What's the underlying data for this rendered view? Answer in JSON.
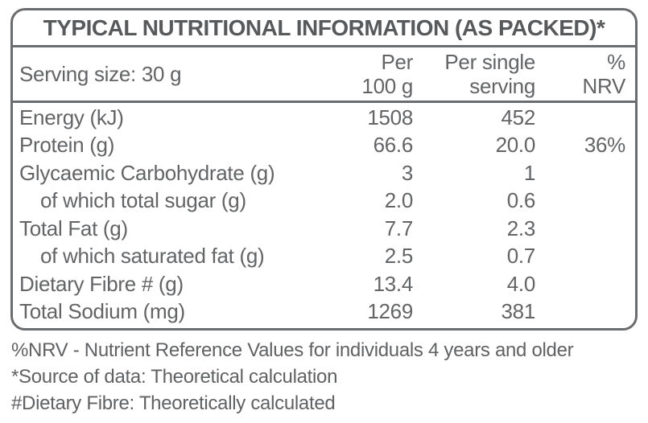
{
  "title": "TYPICAL NUTRITIONAL INFORMATION (AS PACKED)*",
  "header": {
    "serving_size": "Serving size: 30 g",
    "columns": [
      {
        "line1": "Per",
        "line2": "100 g"
      },
      {
        "line1": "Per single",
        "line2": "serving"
      },
      {
        "line1": "%",
        "line2": "NRV"
      }
    ]
  },
  "rows": [
    {
      "label": "Energy (kJ)",
      "per100": "1508",
      "serving": "452",
      "nrv": "",
      "indent": false
    },
    {
      "label": "Protein (g)",
      "per100": "66.6",
      "serving": "20.0",
      "nrv": "36%",
      "indent": false
    },
    {
      "label": "Glycaemic Carbohydrate (g)",
      "per100": "3",
      "serving": "1",
      "nrv": "",
      "indent": false
    },
    {
      "label": "of which total sugar (g)",
      "per100": "2.0",
      "serving": "0.6",
      "nrv": "",
      "indent": true
    },
    {
      "label": "Total Fat (g)",
      "per100": "7.7",
      "serving": "2.3",
      "nrv": "",
      "indent": false
    },
    {
      "label": "of which saturated fat (g)",
      "per100": "2.5",
      "serving": "0.7",
      "nrv": "",
      "indent": true
    },
    {
      "label": "Dietary Fibre # (g)",
      "per100": "13.4",
      "serving": "4.0",
      "nrv": "",
      "indent": false
    },
    {
      "label": "Total Sodium (mg)",
      "per100": "1269",
      "serving": "381",
      "nrv": "",
      "indent": false
    }
  ],
  "footnotes": [
    "%NRV - Nutrient Reference Values for individuals 4 years and older",
    "*Source of data: Theoretical calculation",
    "#Dietary Fibre: Theoretically calculated"
  ],
  "colors": {
    "border": "#6b6c6e",
    "title_text": "#58595b",
    "body_text": "#636466",
    "footnote_text": "#606163",
    "background": "#ffffff"
  }
}
